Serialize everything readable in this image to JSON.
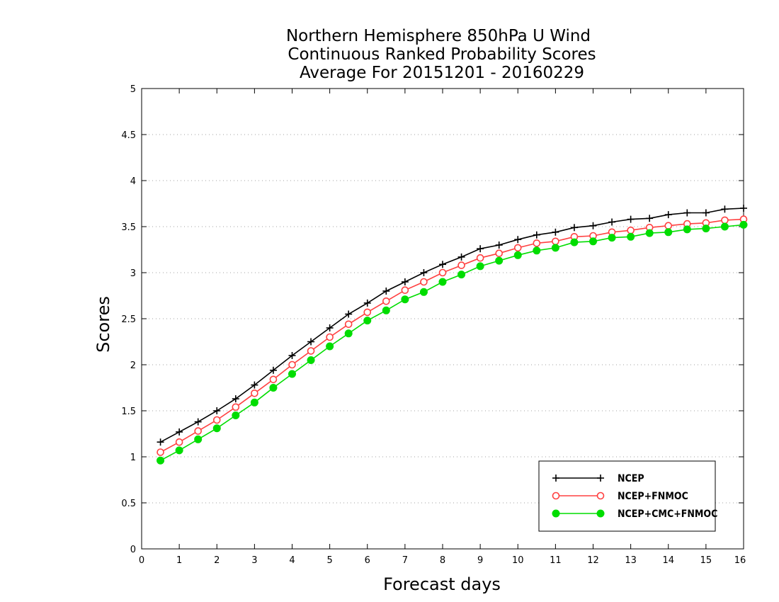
{
  "chart_data": {
    "type": "line",
    "title": "Northern Hemisphere 850hPa U Wind",
    "subtitle": "Continuous Ranked Probability Scores",
    "subtitle2": "Average For 20151201 - 20160229",
    "xlabel": "Forecast days",
    "ylabel": "Scores",
    "xlim": [
      0,
      16
    ],
    "ylim": [
      0,
      5
    ],
    "x_ticks": [
      0,
      1,
      2,
      3,
      4,
      5,
      6,
      7,
      8,
      9,
      10,
      11,
      12,
      13,
      14,
      15,
      16
    ],
    "y_ticks": [
      0,
      0.5,
      1,
      1.5,
      2,
      2.5,
      3,
      3.5,
      4,
      4.5,
      5
    ],
    "grid": "horizontal-dotted",
    "legend_position": "bottom-right",
    "x": [
      0.5,
      1,
      1.5,
      2,
      2.5,
      3,
      3.5,
      4,
      4.5,
      5,
      5.5,
      6,
      6.5,
      7,
      7.5,
      8,
      8.5,
      9,
      9.5,
      10,
      10.5,
      11,
      11.5,
      12,
      12.5,
      13,
      13.5,
      14,
      14.5,
      15,
      15.5,
      16
    ],
    "series": [
      {
        "name": "NCEP",
        "color": "#000000",
        "marker": "plus",
        "values": [
          1.16,
          1.27,
          1.38,
          1.5,
          1.63,
          1.78,
          1.94,
          2.1,
          2.25,
          2.4,
          2.55,
          2.67,
          2.8,
          2.9,
          3.0,
          3.09,
          3.17,
          3.26,
          3.3,
          3.36,
          3.41,
          3.44,
          3.49,
          3.51,
          3.55,
          3.58,
          3.59,
          3.63,
          3.65,
          3.65,
          3.69,
          3.7
        ]
      },
      {
        "name": "NCEP+FNMOC",
        "color": "#ff4040",
        "marker": "open-circle",
        "values": [
          1.05,
          1.16,
          1.28,
          1.4,
          1.54,
          1.69,
          1.84,
          2.0,
          2.15,
          2.3,
          2.44,
          2.57,
          2.69,
          2.81,
          2.9,
          3.0,
          3.08,
          3.16,
          3.21,
          3.27,
          3.32,
          3.34,
          3.39,
          3.4,
          3.44,
          3.46,
          3.49,
          3.51,
          3.53,
          3.54,
          3.57,
          3.58
        ]
      },
      {
        "name": "NCEP+CMC+FNMOC",
        "color": "#00dd00",
        "marker": "filled-circle",
        "values": [
          0.96,
          1.07,
          1.19,
          1.31,
          1.45,
          1.59,
          1.75,
          1.9,
          2.05,
          2.2,
          2.34,
          2.48,
          2.59,
          2.71,
          2.79,
          2.9,
          2.98,
          3.07,
          3.13,
          3.19,
          3.24,
          3.27,
          3.33,
          3.34,
          3.38,
          3.39,
          3.43,
          3.44,
          3.47,
          3.48,
          3.5,
          3.52
        ]
      }
    ]
  }
}
